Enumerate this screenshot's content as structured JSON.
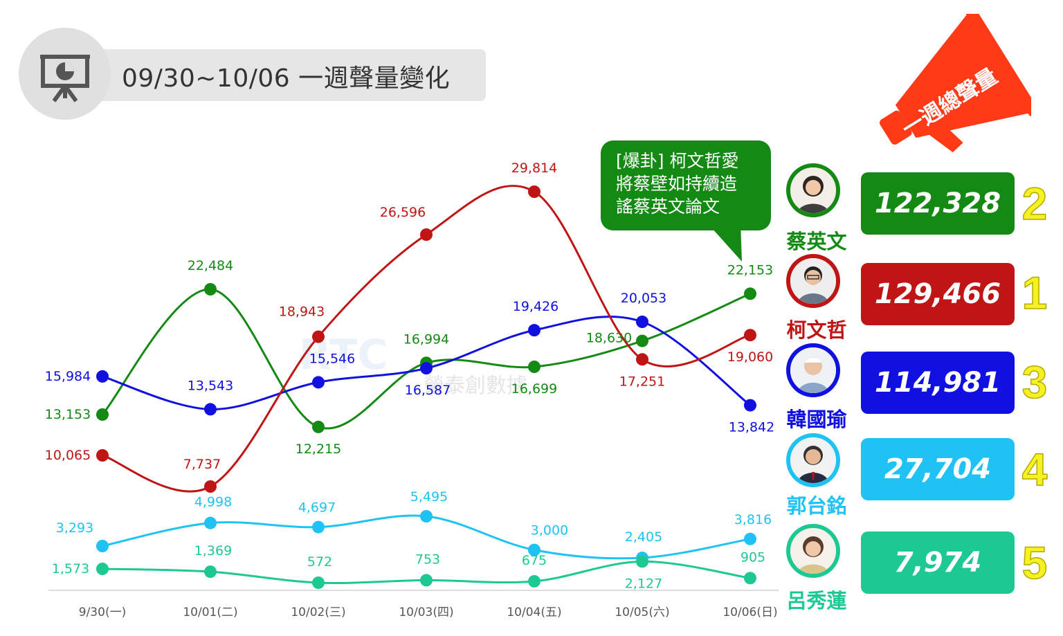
{
  "header": {
    "title": "09/30~10/06 一週聲量變化",
    "icon": "presentation-chart-icon"
  },
  "callout": {
    "text": "[爆卦] 柯文哲愛\n將蔡壁如持續造\n謠蔡英文論文"
  },
  "megaphone": {
    "label": "一週總聲量",
    "icon": "megaphone-icon",
    "color": "#ff3a17"
  },
  "watermark": {
    "brand": "RTC",
    "name": "榮泰創數據"
  },
  "candidates": [
    {
      "name": "蔡英文",
      "total": "122,328",
      "rank": "2",
      "color": "#148a14",
      "avatar": "avatar-tsai-ing-wen"
    },
    {
      "name": "柯文哲",
      "total": "129,466",
      "rank": "1",
      "color": "#c01515",
      "avatar": "avatar-ko-wen-je"
    },
    {
      "name": "韓國瑜",
      "total": "114,981",
      "rank": "3",
      "color": "#1010e0",
      "avatar": "avatar-han-kuo-yu"
    },
    {
      "name": "郭台銘",
      "total": "27,704",
      "rank": "4",
      "color": "#1ec3f3",
      "avatar": "avatar-terry-gou"
    },
    {
      "name": "呂秀蓮",
      "total": "7,974",
      "rank": "5",
      "color": "#1ec892",
      "avatar": "avatar-annette-lu"
    }
  ],
  "chart_data": {
    "type": "line",
    "categories": [
      "9/30(一)",
      "10/01(二)",
      "10/02(三)",
      "10/03(四)",
      "10/04(五)",
      "10/05(六)",
      "10/06(日)"
    ],
    "grid": false,
    "series": [
      {
        "name": "蔡英文",
        "color": "#148a14",
        "values": [
          13153,
          22484,
          12215,
          16994,
          16699,
          18630,
          22153
        ]
      },
      {
        "name": "柯文哲",
        "color": "#c01515",
        "values": [
          10065,
          7737,
          18943,
          26596,
          29814,
          17251,
          19060
        ]
      },
      {
        "name": "韓國瑜",
        "color": "#1010e0",
        "values": [
          15984,
          13543,
          15546,
          16587,
          19426,
          20053,
          13842
        ]
      },
      {
        "name": "郭台銘",
        "color": "#1ec3f3",
        "values": [
          3293,
          4998,
          4697,
          5495,
          3000,
          2405,
          3816
        ]
      },
      {
        "name": "呂秀蓮",
        "color": "#1ec892",
        "values": [
          1573,
          1369,
          572,
          753,
          675,
          2127,
          905
        ]
      }
    ]
  }
}
